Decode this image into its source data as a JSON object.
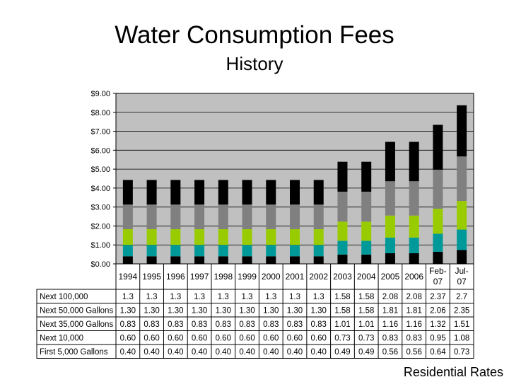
{
  "title": "Water Consumption Fees",
  "subtitle": "History",
  "footer": "Residential Rates",
  "chart_data": {
    "type": "bar",
    "stacked": true,
    "ylim": [
      0,
      9
    ],
    "yticks": [
      "$0.00",
      "$1.00",
      "$2.00",
      "$3.00",
      "$4.00",
      "$5.00",
      "$6.00",
      "$7.00",
      "$8.00",
      "$9.00"
    ],
    "categories": [
      [
        "1994"
      ],
      [
        "1995"
      ],
      [
        "1996"
      ],
      [
        "1997"
      ],
      [
        "1998"
      ],
      [
        "1999"
      ],
      [
        "2000"
      ],
      [
        "2001"
      ],
      [
        "2002"
      ],
      [
        "2003"
      ],
      [
        "2004"
      ],
      [
        "2005"
      ],
      [
        "2006"
      ],
      [
        "Feb-",
        "07"
      ],
      [
        "Jul-",
        "07"
      ]
    ],
    "series": [
      {
        "name": "First 5,000 Gallons",
        "color": "#000000",
        "values": [
          0.4,
          0.4,
          0.4,
          0.4,
          0.4,
          0.4,
          0.4,
          0.4,
          0.4,
          0.49,
          0.49,
          0.56,
          0.56,
          0.64,
          0.73
        ],
        "labels": [
          "0.40",
          "0.40",
          "0.40",
          "0.40",
          "0.40",
          "0.40",
          "0.40",
          "0.40",
          "0.40",
          "0.49",
          "0.49",
          "0.56",
          "0.56",
          "0.64",
          "0.73"
        ]
      },
      {
        "name": "Next 10,000",
        "color": "#009999",
        "values": [
          0.6,
          0.6,
          0.6,
          0.6,
          0.6,
          0.6,
          0.6,
          0.6,
          0.6,
          0.73,
          0.73,
          0.83,
          0.83,
          0.95,
          1.08
        ],
        "labels": [
          "0.60",
          "0.60",
          "0.60",
          "0.60",
          "0.60",
          "0.60",
          "0.60",
          "0.60",
          "0.60",
          "0.73",
          "0.73",
          "0.83",
          "0.83",
          "0.95",
          "1.08"
        ]
      },
      {
        "name": "Next 35,000 Gallons",
        "color": "#99cc00",
        "values": [
          0.83,
          0.83,
          0.83,
          0.83,
          0.83,
          0.83,
          0.83,
          0.83,
          0.83,
          1.01,
          1.01,
          1.16,
          1.16,
          1.32,
          1.51
        ],
        "labels": [
          "0.83",
          "0.83",
          "0.83",
          "0.83",
          "0.83",
          "0.83",
          "0.83",
          "0.83",
          "0.83",
          "1.01",
          "1.01",
          "1.16",
          "1.16",
          "1.32",
          "1.51"
        ]
      },
      {
        "name": "Next 50,000 Gallons",
        "color": "#808080",
        "values": [
          1.3,
          1.3,
          1.3,
          1.3,
          1.3,
          1.3,
          1.3,
          1.3,
          1.3,
          1.58,
          1.58,
          1.81,
          1.81,
          2.06,
          2.35
        ],
        "labels": [
          "1.30",
          "1.30",
          "1.30",
          "1.30",
          "1.30",
          "1.30",
          "1.30",
          "1.30",
          "1.30",
          "1.58",
          "1.58",
          "1.81",
          "1.81",
          "2.06",
          "2.35"
        ]
      },
      {
        "name": "Next 100,000",
        "color": "#000000",
        "values": [
          1.3,
          1.3,
          1.3,
          1.3,
          1.3,
          1.3,
          1.3,
          1.3,
          1.3,
          1.58,
          1.58,
          2.08,
          2.08,
          2.37,
          2.7
        ],
        "labels": [
          "1.3",
          "1.3",
          "1.3",
          "1.3",
          "1.3",
          "1.3",
          "1.3",
          "1.3",
          "1.3",
          "1.58",
          "1.58",
          "2.08",
          "2.08",
          "2.37",
          "2.7"
        ]
      }
    ],
    "table_row_order": [
      "Next 100,000",
      "Next 50,000 Gallons",
      "Next 35,000 Gallons",
      "Next 10,000",
      "First 5,000 Gallons"
    ],
    "plot_background": "#c0c0c0",
    "grid": true
  }
}
